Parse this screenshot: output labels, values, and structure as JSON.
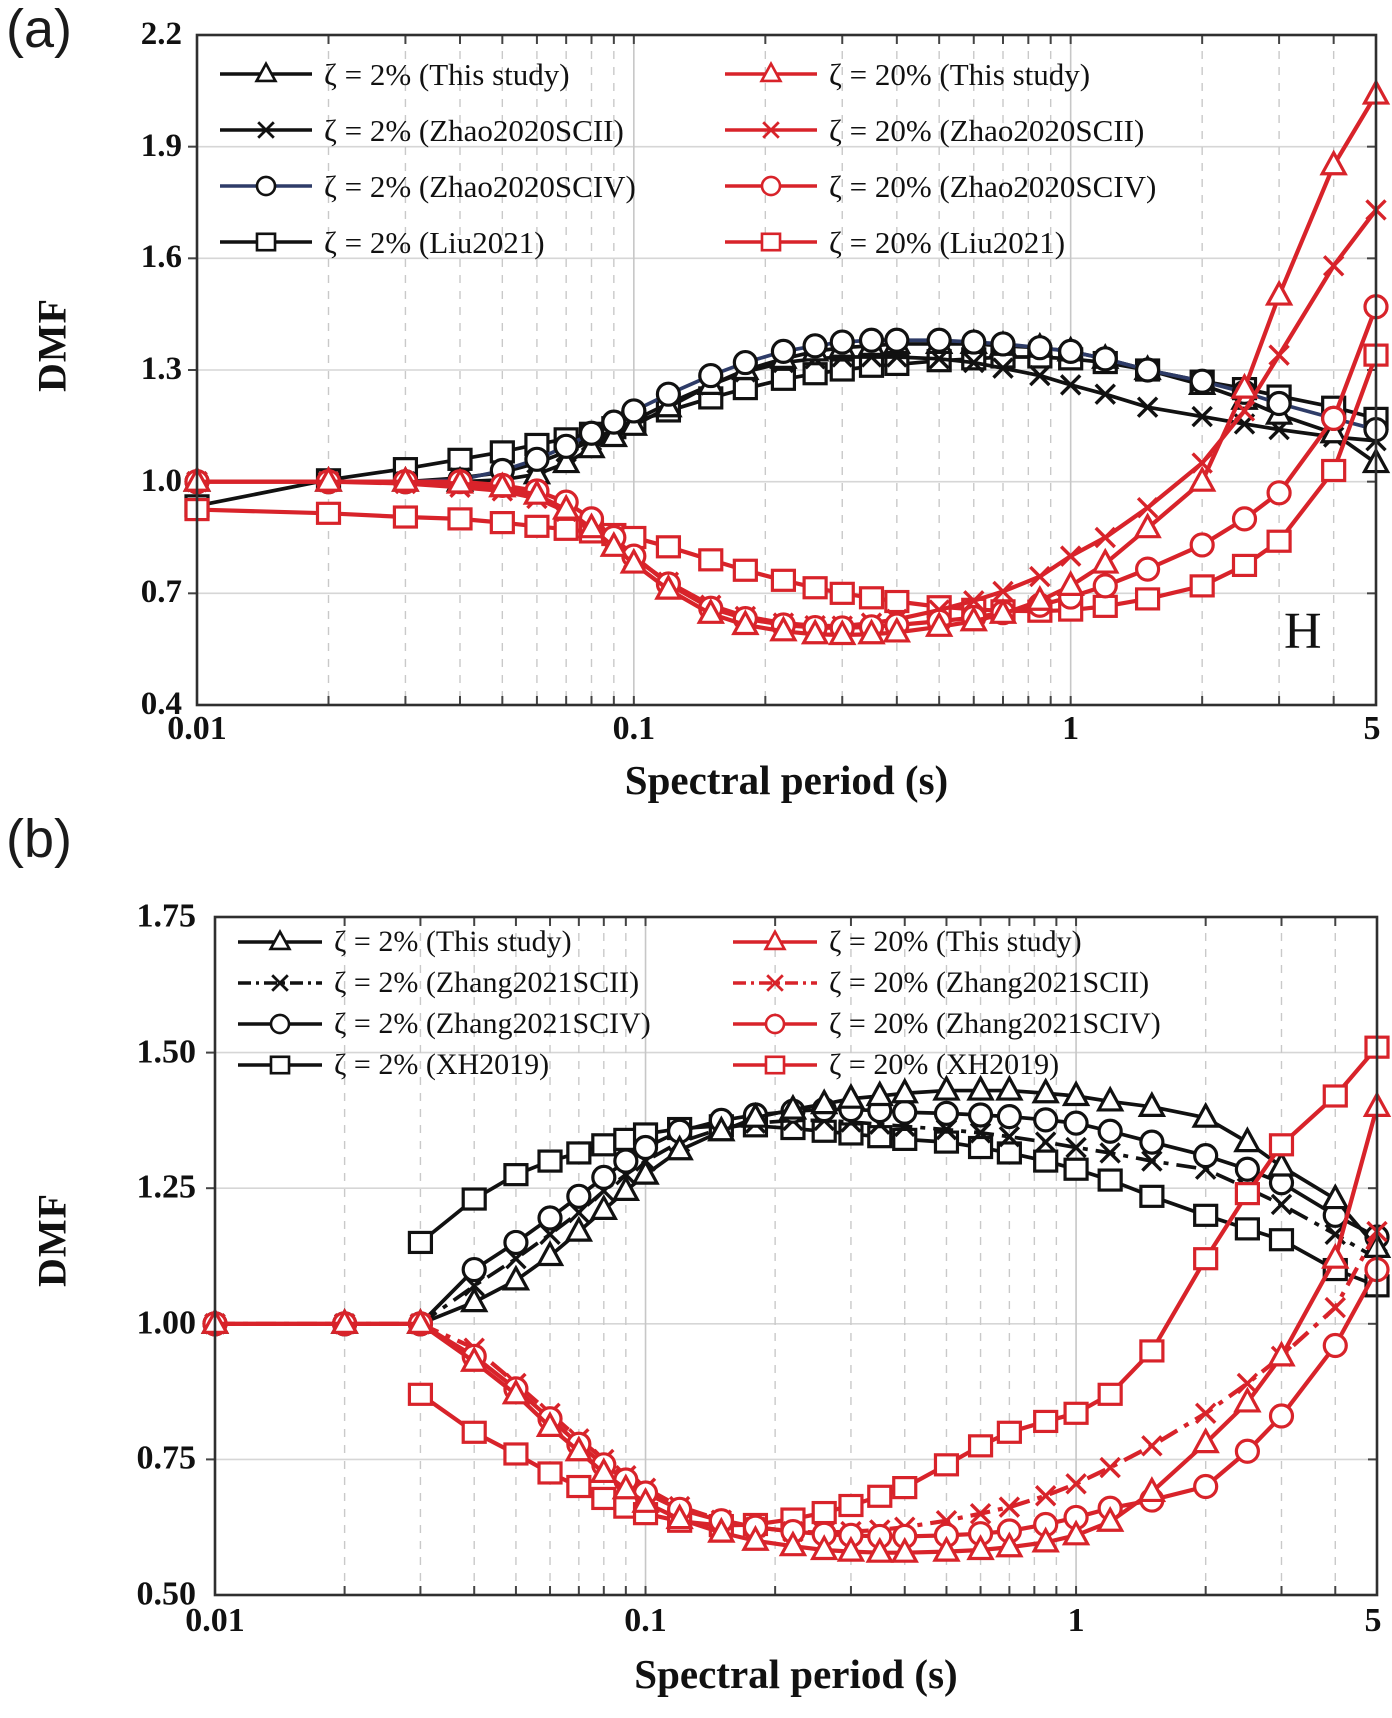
{
  "chart_data": [
    {
      "type": "line",
      "panel_label": "(a)",
      "corner_label": "H",
      "xlabel": "Spectral period (s)",
      "ylabel": "DMF",
      "xscale": "log",
      "xlim": [
        0.01,
        5
      ],
      "ylim": [
        0.4,
        2.2
      ],
      "grid": {
        "horizontal": "solid",
        "vertical_minor": "dashed",
        "vertical_major": "solid"
      },
      "legend_position": "top-inside-two-columns",
      "x_ticks": [
        {
          "value": 0.01,
          "label": "0.01"
        },
        {
          "value": 0.1,
          "label": "0.1"
        },
        {
          "value": 1,
          "label": "1"
        },
        {
          "value": 5,
          "label": "5"
        }
      ],
      "y_ticks": [
        {
          "value": 2.2,
          "label": "2.2"
        },
        {
          "value": 1.9,
          "label": "1.9"
        },
        {
          "value": 1.6,
          "label": "1.6"
        },
        {
          "value": 1.3,
          "label": "1.3"
        },
        {
          "value": 1.0,
          "label": "1.0"
        },
        {
          "value": 0.7,
          "label": "0.7"
        },
        {
          "value": 0.4,
          "label": "0.4"
        }
      ],
      "x": [
        0.01,
        0.02,
        0.03,
        0.04,
        0.05,
        0.06,
        0.07,
        0.08,
        0.09,
        0.1,
        0.12,
        0.15,
        0.18,
        0.22,
        0.26,
        0.3,
        0.35,
        0.4,
        0.5,
        0.6,
        0.7,
        0.85,
        1,
        1.2,
        1.5,
        2,
        2.5,
        3,
        4,
        5
      ],
      "series": [
        {
          "name": "ζ = 2% (This study)",
          "color": "#111111",
          "marker": "triangle",
          "linestyle": "solid",
          "values": [
            1.0,
            1.0,
            1.0,
            1.0,
            1.005,
            1.02,
            1.05,
            1.09,
            1.12,
            1.15,
            1.2,
            1.26,
            1.3,
            1.33,
            1.35,
            1.36,
            1.365,
            1.37,
            1.37,
            1.37,
            1.365,
            1.36,
            1.35,
            1.33,
            1.3,
            1.26,
            1.22,
            1.18,
            1.13,
            1.05
          ]
        },
        {
          "name": "ζ = 2% (Zhao2020SCII)",
          "color": "#111111",
          "marker": "x",
          "linestyle": "solid",
          "values": [
            1.0,
            1.0,
            1.0,
            1.01,
            1.025,
            1.05,
            1.08,
            1.11,
            1.14,
            1.165,
            1.21,
            1.26,
            1.295,
            1.32,
            1.33,
            1.335,
            1.335,
            1.335,
            1.33,
            1.32,
            1.305,
            1.285,
            1.26,
            1.235,
            1.2,
            1.175,
            1.155,
            1.14,
            1.12,
            1.11
          ]
        },
        {
          "name": "ζ = 2% (Zhao2020SCIV)",
          "color": "#111111",
          "line_color": "#2e3c68",
          "marker": "circle",
          "linestyle": "solid",
          "values": [
            1.0,
            1.0,
            1.0,
            1.005,
            1.03,
            1.06,
            1.095,
            1.13,
            1.16,
            1.19,
            1.235,
            1.285,
            1.32,
            1.35,
            1.365,
            1.375,
            1.38,
            1.38,
            1.38,
            1.375,
            1.37,
            1.36,
            1.35,
            1.33,
            1.3,
            1.27,
            1.24,
            1.21,
            1.17,
            1.14
          ]
        },
        {
          "name": "ζ = 2% (Liu2021)",
          "color": "#111111",
          "marker": "square",
          "linestyle": "solid",
          "values": [
            0.935,
            1.005,
            1.035,
            1.06,
            1.08,
            1.1,
            1.115,
            1.13,
            1.145,
            1.16,
            1.19,
            1.225,
            1.25,
            1.275,
            1.29,
            1.3,
            1.31,
            1.315,
            1.325,
            1.33,
            1.335,
            1.335,
            1.33,
            1.32,
            1.3,
            1.27,
            1.25,
            1.23,
            1.2,
            1.17
          ]
        },
        {
          "name": "ζ = 20% (This study)",
          "color": "#d8232a",
          "marker": "triangle",
          "linestyle": "solid",
          "values": [
            1.0,
            1.0,
            1.0,
            0.995,
            0.985,
            0.965,
            0.925,
            0.875,
            0.825,
            0.78,
            0.71,
            0.645,
            0.615,
            0.598,
            0.59,
            0.588,
            0.59,
            0.595,
            0.61,
            0.625,
            0.645,
            0.68,
            0.72,
            0.78,
            0.875,
            1.0,
            1.25,
            1.5,
            1.85,
            2.04
          ]
        },
        {
          "name": "ζ = 20% (Zhao2020SCII)",
          "color": "#d8232a",
          "marker": "x",
          "linestyle": "solid",
          "values": [
            1.0,
            1.0,
            0.995,
            0.985,
            0.975,
            0.955,
            0.92,
            0.88,
            0.835,
            0.795,
            0.73,
            0.668,
            0.638,
            0.62,
            0.613,
            0.612,
            0.62,
            0.63,
            0.655,
            0.68,
            0.705,
            0.745,
            0.8,
            0.85,
            0.93,
            1.05,
            1.19,
            1.34,
            1.58,
            1.73
          ]
        },
        {
          "name": "ζ = 20% (Zhao2020SCIV)",
          "color": "#d8232a",
          "marker": "circle",
          "linestyle": "solid",
          "values": [
            1.0,
            1.0,
            1.0,
            1.0,
            0.99,
            0.975,
            0.945,
            0.9,
            0.85,
            0.8,
            0.725,
            0.66,
            0.632,
            0.615,
            0.608,
            0.607,
            0.61,
            0.615,
            0.625,
            0.635,
            0.648,
            0.668,
            0.69,
            0.72,
            0.765,
            0.83,
            0.9,
            0.97,
            1.17,
            1.47
          ]
        },
        {
          "name": "ζ = 20% (Liu2021)",
          "color": "#d8232a",
          "marker": "square",
          "linestyle": "solid",
          "values": [
            0.925,
            0.915,
            0.905,
            0.9,
            0.89,
            0.88,
            0.872,
            0.865,
            0.858,
            0.85,
            0.825,
            0.79,
            0.762,
            0.735,
            0.715,
            0.7,
            0.688,
            0.678,
            0.664,
            0.657,
            0.653,
            0.652,
            0.655,
            0.665,
            0.685,
            0.72,
            0.775,
            0.84,
            1.03,
            1.34
          ]
        }
      ]
    },
    {
      "type": "line",
      "panel_label": "(b)",
      "corner_label": "",
      "xlabel": "Spectral period (s)",
      "ylabel": "DMF",
      "xscale": "log",
      "xlim": [
        0.01,
        5
      ],
      "ylim": [
        0.5,
        1.75
      ],
      "grid": {
        "horizontal": "solid",
        "vertical_minor": "dashed",
        "vertical_major": "solid"
      },
      "legend_position": "top-inside-two-columns",
      "x_ticks": [
        {
          "value": 0.01,
          "label": "0.01"
        },
        {
          "value": 0.1,
          "label": "0.1"
        },
        {
          "value": 1,
          "label": "1"
        },
        {
          "value": 5,
          "label": "5"
        }
      ],
      "y_ticks": [
        {
          "value": 1.75,
          "label": "1.75"
        },
        {
          "value": 1.5,
          "label": "1.50"
        },
        {
          "value": 1.25,
          "label": "1.25"
        },
        {
          "value": 1.0,
          "label": "1.00"
        },
        {
          "value": 0.75,
          "label": "0.75"
        },
        {
          "value": 0.5,
          "label": "0.50"
        }
      ],
      "x": [
        0.01,
        0.02,
        0.03,
        0.04,
        0.05,
        0.06,
        0.07,
        0.08,
        0.09,
        0.1,
        0.12,
        0.15,
        0.18,
        0.22,
        0.26,
        0.3,
        0.35,
        0.4,
        0.5,
        0.6,
        0.7,
        0.85,
        1,
        1.2,
        1.5,
        2,
        2.5,
        3,
        4,
        5
      ],
      "series": [
        {
          "name": "ζ = 2% (This study)",
          "color": "#111111",
          "marker": "triangle",
          "linestyle": "solid",
          "values": [
            1.0,
            1.0,
            1.0,
            1.04,
            1.08,
            1.125,
            1.17,
            1.21,
            1.245,
            1.275,
            1.32,
            1.355,
            1.38,
            1.395,
            1.405,
            1.415,
            1.42,
            1.425,
            1.43,
            1.43,
            1.43,
            1.425,
            1.42,
            1.41,
            1.4,
            1.38,
            1.335,
            1.29,
            1.23,
            1.14
          ]
        },
        {
          "name": "ζ = 2% (Zhang2021SCII)",
          "color": "#111111",
          "marker": "x",
          "linestyle": "dashdot",
          "values": [
            1.0,
            1.0,
            1.0,
            1.07,
            1.12,
            1.165,
            1.205,
            1.245,
            1.275,
            1.3,
            1.335,
            1.36,
            1.37,
            1.375,
            1.375,
            1.372,
            1.368,
            1.364,
            1.358,
            1.352,
            1.345,
            1.335,
            1.325,
            1.315,
            1.3,
            1.285,
            1.25,
            1.22,
            1.165,
            1.12
          ]
        },
        {
          "name": "ζ = 2% (Zhang2021SCIV)",
          "color": "#111111",
          "marker": "circle",
          "linestyle": "solid",
          "values": [
            1.0,
            1.0,
            1.0,
            1.1,
            1.15,
            1.195,
            1.235,
            1.27,
            1.3,
            1.325,
            1.355,
            1.375,
            1.385,
            1.392,
            1.395,
            1.395,
            1.393,
            1.39,
            1.388,
            1.385,
            1.382,
            1.376,
            1.37,
            1.355,
            1.335,
            1.31,
            1.285,
            1.26,
            1.2,
            1.16
          ]
        },
        {
          "name": "ζ = 2% (XH2019)",
          "color": "#111111",
          "marker": "square",
          "linestyle": "solid",
          "values": [
            null,
            null,
            1.15,
            1.23,
            1.275,
            1.3,
            1.315,
            1.33,
            1.34,
            1.35,
            1.36,
            1.365,
            1.365,
            1.36,
            1.355,
            1.35,
            1.345,
            1.34,
            1.335,
            1.325,
            1.315,
            1.3,
            1.285,
            1.265,
            1.235,
            1.2,
            1.175,
            1.155,
            1.1,
            1.07
          ]
        },
        {
          "name": "ζ = 20% (This study)",
          "color": "#d8232a",
          "marker": "triangle",
          "linestyle": "solid",
          "values": [
            1.0,
            1.0,
            1.0,
            0.93,
            0.87,
            0.81,
            0.765,
            0.725,
            0.695,
            0.67,
            0.64,
            0.615,
            0.6,
            0.59,
            0.583,
            0.58,
            0.578,
            0.578,
            0.58,
            0.583,
            0.588,
            0.597,
            0.61,
            0.635,
            0.69,
            0.78,
            0.855,
            0.94,
            1.12,
            1.4
          ]
        },
        {
          "name": "ζ = 20% (Zhang2021SCII)",
          "color": "#d8232a",
          "marker": "x",
          "linestyle": "dashdot",
          "values": [
            1.0,
            1.0,
            1.0,
            0.955,
            0.89,
            0.835,
            0.788,
            0.75,
            0.72,
            0.697,
            0.663,
            0.638,
            0.625,
            0.617,
            0.615,
            0.617,
            0.62,
            0.625,
            0.637,
            0.65,
            0.662,
            0.683,
            0.705,
            0.735,
            0.775,
            0.835,
            0.89,
            0.94,
            1.03,
            1.17
          ]
        },
        {
          "name": "ζ = 20% (Zhang2021SCIV)",
          "color": "#d8232a",
          "marker": "circle",
          "linestyle": "solid",
          "values": [
            1.0,
            1.0,
            1.0,
            0.94,
            0.88,
            0.825,
            0.778,
            0.74,
            0.712,
            0.688,
            0.658,
            0.637,
            0.625,
            0.617,
            0.612,
            0.61,
            0.608,
            0.608,
            0.61,
            0.613,
            0.618,
            0.63,
            0.643,
            0.66,
            0.675,
            0.7,
            0.765,
            0.83,
            0.96,
            1.1
          ]
        },
        {
          "name": "ζ = 20% (XH2019)",
          "color": "#d8232a",
          "marker": "square",
          "linestyle": "solid",
          "values": [
            null,
            null,
            0.87,
            0.8,
            0.76,
            0.725,
            0.7,
            0.678,
            0.662,
            0.65,
            0.636,
            0.628,
            0.63,
            0.64,
            0.652,
            0.665,
            0.682,
            0.698,
            0.74,
            0.775,
            0.8,
            0.82,
            0.835,
            0.87,
            0.95,
            1.12,
            1.24,
            1.33,
            1.42,
            1.51
          ]
        }
      ]
    }
  ]
}
